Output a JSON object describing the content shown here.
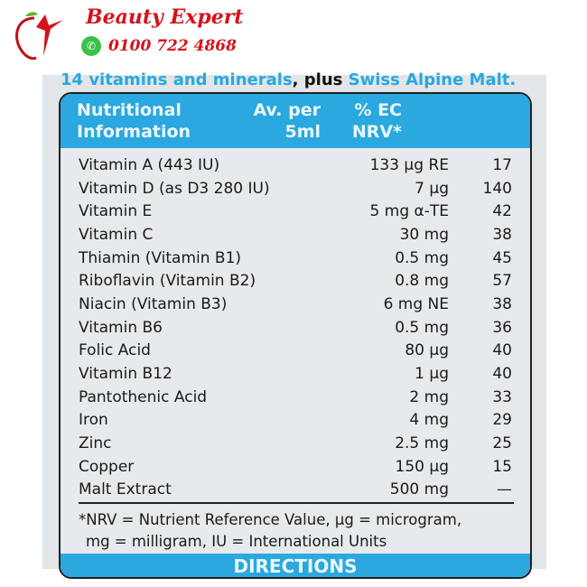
{
  "logo": {
    "brand": "Beauty Expert",
    "phone": "0100 722 4868",
    "icon": "whatsapp-icon"
  },
  "tagline": {
    "part1": "14 vitamins and minerals",
    "part2": ", plus ",
    "part3": "Swiss Alpine Malt."
  },
  "table": {
    "header": {
      "col1": "Nutritional Information",
      "col2": "Av. per 5ml",
      "col3": "% EC NRV*"
    },
    "rows": [
      {
        "name": "Vitamin A (443 IU)",
        "amount": "133 µg RE",
        "nrv": "17"
      },
      {
        "name": "Vitamin D (as D3 280 IU)",
        "amount": "7 µg",
        "nrv": "140"
      },
      {
        "name": "Vitamin E",
        "amount": "5 mg α-TE",
        "nrv": "42"
      },
      {
        "name": "Vitamin C",
        "amount": "30 mg",
        "nrv": "38"
      },
      {
        "name": "Thiamin (Vitamin B1)",
        "amount": "0.5 mg",
        "nrv": "45"
      },
      {
        "name": "Riboflavin (Vitamin B2)",
        "amount": "0.8 mg",
        "nrv": "57"
      },
      {
        "name": "Niacin (Vitamin B3)",
        "amount": "6 mg NE",
        "nrv": "38"
      },
      {
        "name": "Vitamin B6",
        "amount": "0.5 mg",
        "nrv": "36"
      },
      {
        "name": "Folic Acid",
        "amount": "80 µg",
        "nrv": "40"
      },
      {
        "name": "Vitamin B12",
        "amount": "1 µg",
        "nrv": "40"
      },
      {
        "name": "Pantothenic Acid",
        "amount": "2 mg",
        "nrv": "33"
      },
      {
        "name": "Iron",
        "amount": "4 mg",
        "nrv": "29"
      },
      {
        "name": "Zinc",
        "amount": "2.5 mg",
        "nrv": "25"
      },
      {
        "name": "Copper",
        "amount": "150 µg",
        "nrv": "15"
      },
      {
        "name": "Malt Extract",
        "amount": "500 mg",
        "nrv": "—"
      }
    ],
    "footnote": {
      "line1": "*NRV = Nutrient Reference Value, µg = microgram,",
      "line2": "mg = milligram, IU = International Units"
    },
    "directions": "DIRECTIONS"
  },
  "colors": {
    "accent": "#2aa8df",
    "brand": "#d3121c",
    "background": "#e2e6e8"
  }
}
